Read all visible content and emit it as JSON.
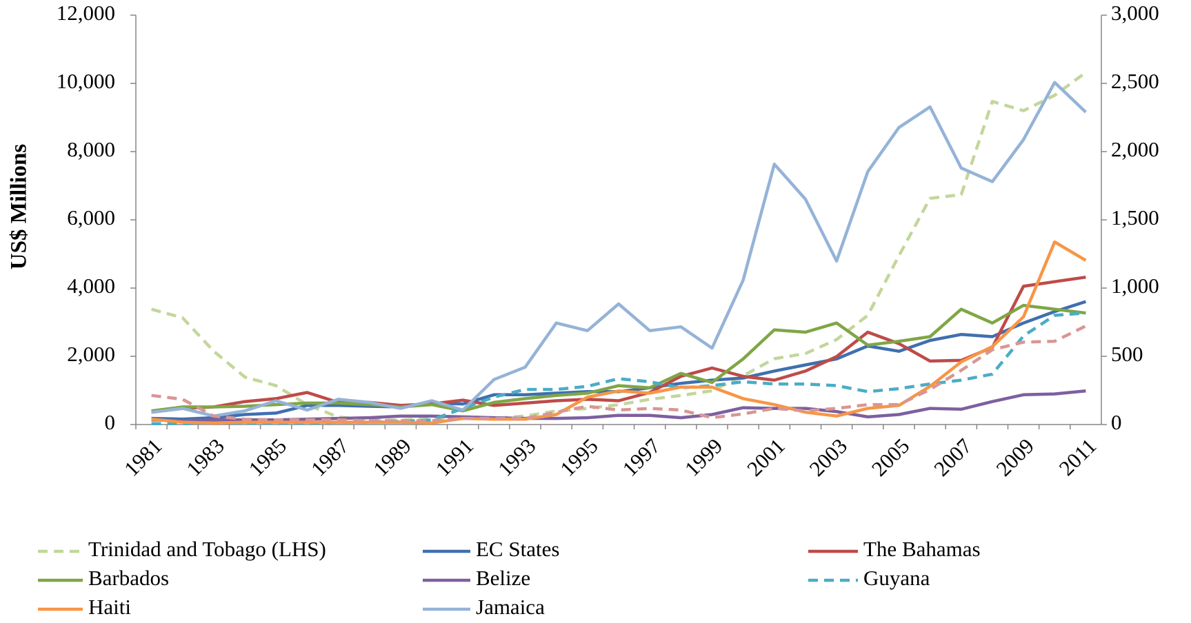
{
  "chart_data": {
    "type": "line",
    "y_label": "US$ Millions",
    "categories": [
      "1981",
      null,
      "1983",
      null,
      "1985",
      null,
      "1987",
      null,
      "1989",
      null,
      "1991",
      null,
      "1993",
      null,
      "1995",
      null,
      "1997",
      null,
      "1999",
      null,
      "2001",
      null,
      "2003",
      null,
      "2005",
      null,
      "2007",
      null,
      "2009",
      null,
      "2011"
    ],
    "ylim": [
      0,
      12000
    ],
    "yticks": [
      0,
      {
        "value": 2000,
        "label": "2,000"
      },
      {
        "value": 4000,
        "label": "4,000"
      },
      {
        "value": 6000,
        "label": "6,000"
      },
      {
        "value": 8000,
        "label": "8,000"
      },
      {
        "value": 10000,
        "label": "10,000"
      },
      {
        "value": 12000,
        "label": "12,000"
      }
    ],
    "y2lim": [
      0,
      3000
    ],
    "y2ticks": [
      0,
      500,
      {
        "value": 1000,
        "label": "1,000"
      },
      {
        "value": 1500,
        "label": "1,500"
      },
      {
        "value": 2000,
        "label": "2,000"
      },
      {
        "value": 2500,
        "label": "2,500"
      },
      {
        "value": 3000,
        "label": "3,000"
      }
    ],
    "series": [
      {
        "name": "Trinidad and Tobago (LHS)",
        "color": "#c3d69b",
        "dashed": true,
        "axis": "y",
        "values": [
          3380,
          3130,
          2150,
          1390,
          1140,
          580,
          220,
          130,
          130,
          180,
          180,
          180,
          250,
          400,
          470,
          580,
          740,
          850,
          990,
          1430,
          1930,
          2080,
          2490,
          3200,
          4950,
          6630,
          6740,
          9470,
          9200,
          9650,
          10320
        ]
      },
      {
        "name": "EC States",
        "color": "#3f6fb0",
        "dashed": false,
        "axis": "y2",
        "values": [
          45,
          40,
          50,
          73,
          84,
          140,
          140,
          134,
          129,
          157,
          151,
          218,
          218,
          230,
          241,
          241,
          269,
          302,
          325,
          341,
          392,
          437,
          481,
          576,
          537,
          616,
          660,
          644,
          744,
          828,
          901
        ]
      },
      {
        "name": "The Bahamas",
        "color": "#be4b48",
        "dashed": false,
        "axis": "y2",
        "values": [
          90,
          118,
          129,
          168,
          190,
          235,
          162,
          162,
          140,
          151,
          179,
          140,
          157,
          174,
          185,
          174,
          235,
          353,
          414,
          353,
          325,
          392,
          498,
          677,
          593,
          465,
          470,
          565,
          1013,
          1047,
          1080
        ]
      },
      {
        "name": "Barbados",
        "color": "#7fa645",
        "dashed": false,
        "axis": "y2",
        "values": [
          100,
          129,
          129,
          134,
          146,
          157,
          157,
          146,
          129,
          146,
          100,
          162,
          190,
          213,
          230,
          285,
          269,
          375,
          308,
          481,
          694,
          677,
          744,
          582,
          610,
          644,
          845,
          744,
          873,
          845,
          817
        ]
      },
      {
        "name": "Belize",
        "color": "#7d60a0",
        "dashed": false,
        "axis": "y2",
        "values": [
          34,
          28,
          34,
          34,
          34,
          39,
          45,
          50,
          62,
          62,
          56,
          50,
          45,
          45,
          50,
          67,
          67,
          50,
          73,
          123,
          118,
          118,
          95,
          56,
          73,
          118,
          112,
          168,
          218,
          224,
          246
        ]
      },
      {
        "name": "Guyana",
        "color": "#4bacc6",
        "dashed": true,
        "axis": "y2",
        "values": [
          6,
          6,
          11,
          11,
          11,
          11,
          17,
          17,
          22,
          34,
          118,
          201,
          257,
          257,
          280,
          336,
          313,
          269,
          285,
          313,
          297,
          297,
          285,
          241,
          263,
          297,
          325,
          369,
          649,
          800,
          817
        ]
      },
      {
        "name": "Haiti",
        "color": "#f79646",
        "dashed": false,
        "axis": "y2",
        "values": [
          39,
          17,
          11,
          17,
          17,
          17,
          17,
          17,
          17,
          11,
          45,
          39,
          39,
          73,
          201,
          246,
          230,
          274,
          274,
          190,
          146,
          90,
          62,
          118,
          140,
          280,
          459,
          571,
          789,
          1338,
          1203
        ]
      },
      {
        "name": "Jamaica",
        "color": "#95b3d7",
        "dashed": false,
        "axis": "y2",
        "values": [
          90,
          118,
          62,
          100,
          174,
          106,
          185,
          162,
          118,
          174,
          106,
          330,
          420,
          744,
          688,
          884,
          688,
          716,
          560,
          1058,
          1908,
          1651,
          1198,
          1853,
          2177,
          2328,
          1880,
          1780,
          2088,
          2507,
          2289
        ]
      },
      {
        "color": "#d99694",
        "dashed": true,
        "axis": "y2",
        "values": [
          213,
          185,
          62,
          39,
          34,
          34,
          34,
          28,
          28,
          28,
          45,
          45,
          45,
          90,
          134,
          106,
          118,
          106,
          50,
          78,
          118,
          100,
          118,
          146,
          146,
          257,
          397,
          548,
          604,
          610,
          722
        ]
      }
    ]
  }
}
